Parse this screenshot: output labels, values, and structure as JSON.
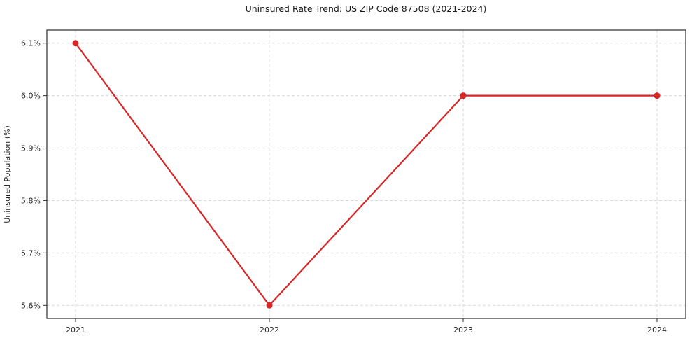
{
  "figure": {
    "background": "#ffffff"
  },
  "chart_data": {
    "type": "line",
    "title": "Uninsured Rate Trend: US ZIP Code 87508 (2021-2024)",
    "xlabel": "",
    "ylabel": "Uninsured Population (%)",
    "categories": [
      "2021",
      "2022",
      "2023",
      "2024"
    ],
    "values": [
      6.1,
      5.6,
      6.0,
      6.0
    ],
    "ylim": [
      5.575,
      6.125
    ],
    "ytick_values": [
      5.6,
      5.7,
      5.8,
      5.9,
      6.0,
      6.1
    ],
    "ytick_labels": [
      "5.6%",
      "5.7%",
      "5.8%",
      "5.9%",
      "6.0%",
      "6.1%"
    ],
    "grid": true,
    "grid_style": "dashed",
    "legend_position": "none",
    "marker": "circle",
    "colors": {
      "line": "#d62728",
      "marker": "#d62728",
      "grid": "#d9d9d9",
      "spine": "#2b2b2b",
      "text": "#262626"
    }
  }
}
